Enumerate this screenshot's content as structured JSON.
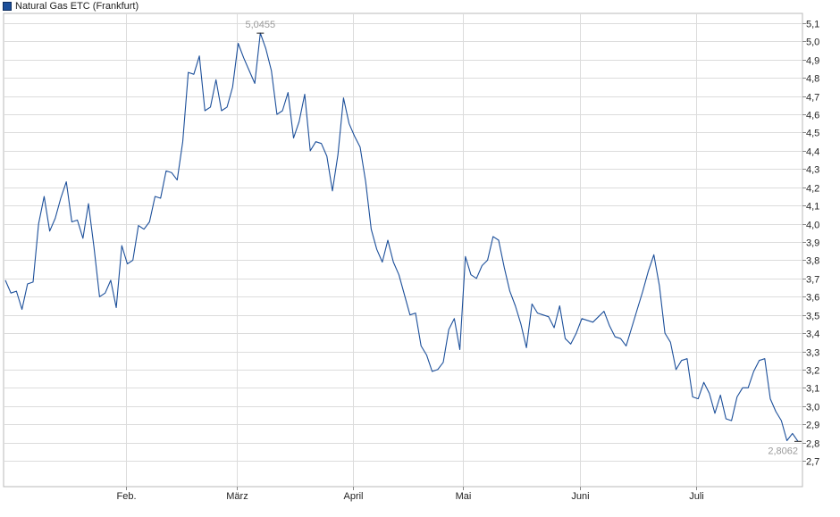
{
  "legend": {
    "label": "Natural Gas ETC (Frankfurt)",
    "color": "#1c4f9a"
  },
  "chart_data": {
    "type": "line",
    "title": "",
    "xlabel": "",
    "ylabel": "",
    "series": [
      {
        "name": "Natural Gas ETC (Frankfurt)",
        "color": "#1c4f9a",
        "values": [
          3.69,
          3.62,
          3.63,
          3.53,
          3.67,
          3.68,
          4.0,
          4.15,
          3.96,
          4.03,
          4.14,
          4.23,
          4.01,
          4.02,
          3.92,
          4.11,
          3.87,
          3.6,
          3.62,
          3.69,
          3.54,
          3.88,
          3.78,
          3.8,
          3.99,
          3.97,
          4.01,
          4.15,
          4.14,
          4.29,
          4.28,
          4.24,
          4.45,
          4.83,
          4.82,
          4.92,
          4.62,
          4.64,
          4.79,
          4.62,
          4.64,
          4.75,
          4.99,
          4.91,
          4.84,
          4.77,
          5.0455,
          4.96,
          4.84,
          4.6,
          4.62,
          4.72,
          4.47,
          4.56,
          4.71,
          4.4,
          4.45,
          4.44,
          4.37,
          4.18,
          4.38,
          4.69,
          4.55,
          4.48,
          4.42,
          4.23,
          3.97,
          3.86,
          3.79,
          3.91,
          3.79,
          3.72,
          3.61,
          3.5,
          3.51,
          3.33,
          3.28,
          3.19,
          3.2,
          3.24,
          3.42,
          3.48,
          3.31,
          3.82,
          3.72,
          3.7,
          3.77,
          3.8,
          3.93,
          3.91,
          3.76,
          3.63,
          3.55,
          3.45,
          3.32,
          3.56,
          3.51,
          3.5,
          3.49,
          3.43,
          3.55,
          3.37,
          3.34,
          3.4,
          3.48,
          3.47,
          3.46,
          3.49,
          3.52,
          3.44,
          3.38,
          3.37,
          3.33,
          3.43,
          3.53,
          3.63,
          3.74,
          3.83,
          3.66,
          3.4,
          3.35,
          3.2,
          3.25,
          3.26,
          3.05,
          3.04,
          3.13,
          3.07,
          2.96,
          3.06,
          2.93,
          2.92,
          3.05,
          3.1,
          3.1,
          3.19,
          3.25,
          3.26,
          3.04,
          2.97,
          2.92,
          2.81,
          2.85,
          2.8062
        ]
      }
    ],
    "y_ticks": [
      "2,7",
      "2,8",
      "2,9",
      "3,0",
      "3,1",
      "3,2",
      "3,3",
      "3,4",
      "3,5",
      "3,6",
      "3,7",
      "3,8",
      "3,9",
      "4,0",
      "4,1",
      "4,2",
      "4,3",
      "4,4",
      "4,5",
      "4,6",
      "4,7",
      "4,8",
      "4,9",
      "5,0",
      "5,1"
    ],
    "x_ticks": [
      "Feb.",
      "März",
      "April",
      "Mai",
      "Juni",
      "Juli"
    ],
    "ylim": [
      2.6,
      5.15
    ],
    "grid": true,
    "annotations": {
      "max_label": "5,0455",
      "last_label": "2,8062"
    }
  }
}
